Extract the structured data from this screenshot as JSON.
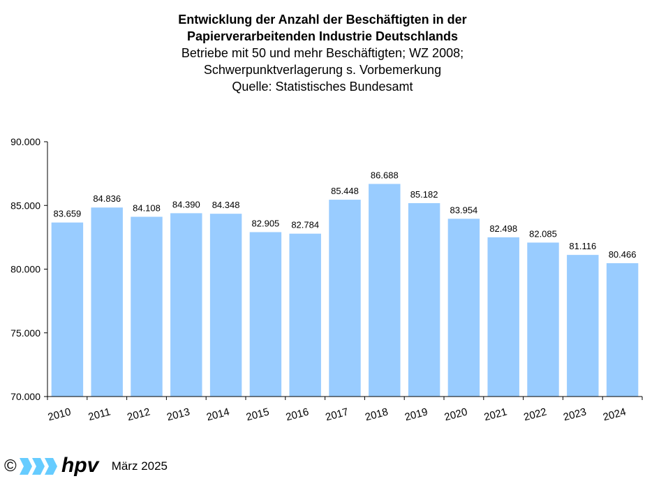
{
  "chart_data": {
    "type": "bar",
    "title_lines": [
      "Entwicklung der Anzahl der Beschäftigten in der",
      "Papierverarbeitenden Industrie Deutschlands"
    ],
    "subtitle_lines": [
      "Betriebe mit 50 und mehr Beschäftigten; WZ 2008;",
      "Schwerpunktverlagerung s. Vorbemerkung",
      "Quelle: Statistisches Bundesamt"
    ],
    "categories": [
      "2010",
      "2011",
      "2012",
      "2013",
      "2014",
      "2015",
      "2016",
      "2017",
      "2018",
      "2019",
      "2020",
      "2021",
      "2022",
      "2023",
      "2024"
    ],
    "values": [
      83659,
      84836,
      84108,
      84390,
      84348,
      82905,
      82784,
      85448,
      86688,
      85182,
      83954,
      82498,
      82085,
      81116,
      80466
    ],
    "value_labels": [
      "83.659",
      "84.836",
      "84.108",
      "84.390",
      "84.348",
      "82.905",
      "82.784",
      "85.448",
      "86.688",
      "85.182",
      "83.954",
      "82.498",
      "82.085",
      "81.116",
      "80.466"
    ],
    "ylim": [
      70000,
      90000
    ],
    "yticks": [
      70000,
      75000,
      80000,
      85000,
      90000
    ],
    "ytick_labels": [
      "70.000",
      "75.000",
      "80.000",
      "85.000",
      "90.000"
    ],
    "bar_color": "#99ccff",
    "grid": false
  },
  "footer": {
    "copyright": "©",
    "logo_text": "hpv",
    "date": "März 2025",
    "logo_color": "#66ccff"
  }
}
